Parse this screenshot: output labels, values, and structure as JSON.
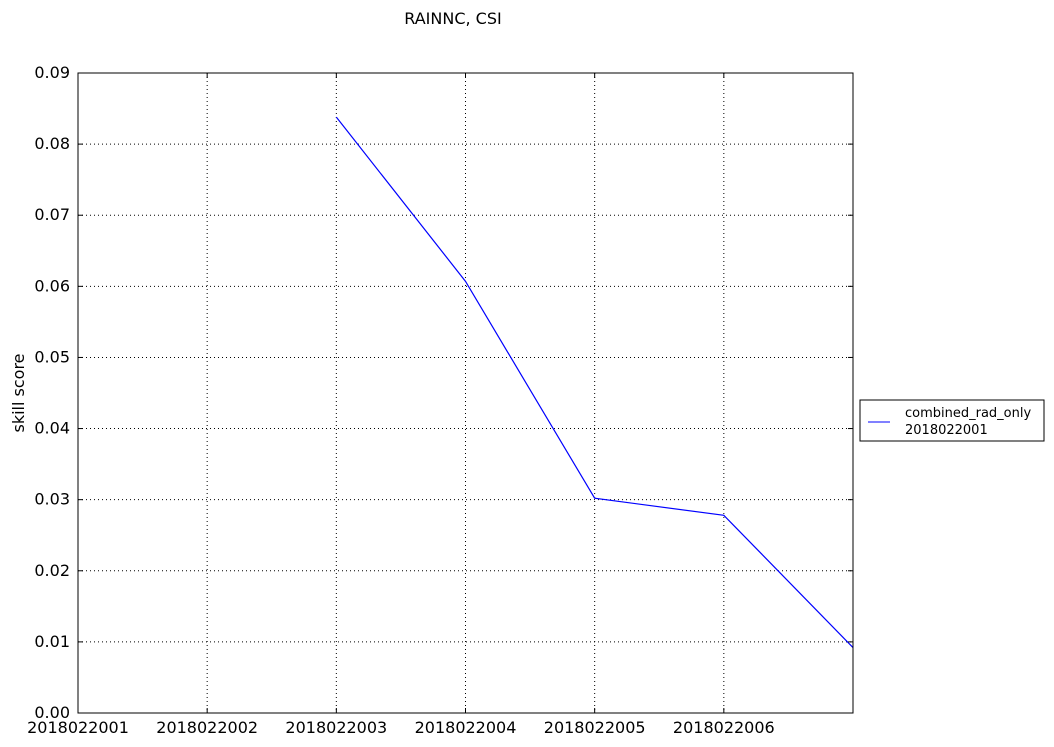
{
  "chart_data": {
    "type": "line",
    "title": "RAINNC, CSI",
    "xlabel": "",
    "ylabel": "skill score",
    "x_tick_labels": [
      "2018022001",
      "2018022002",
      "2018022003",
      "2018022004",
      "2018022005",
      "2018022006"
    ],
    "y_tick_labels": [
      "0.00",
      "0.01",
      "0.02",
      "0.03",
      "0.04",
      "0.05",
      "0.06",
      "0.07",
      "0.08",
      "0.09"
    ],
    "xlim": [
      0,
      6
    ],
    "ylim": [
      0,
      0.09
    ],
    "grid": true,
    "legend_placement": "right",
    "series": [
      {
        "name_lines": [
          "combined_rad_only",
          "2018022001"
        ],
        "color": "#0000ff",
        "x": [
          2,
          3,
          4,
          5,
          6
        ],
        "values": [
          0.0838,
          0.0607,
          0.0302,
          0.0278,
          0.0092
        ]
      }
    ]
  }
}
